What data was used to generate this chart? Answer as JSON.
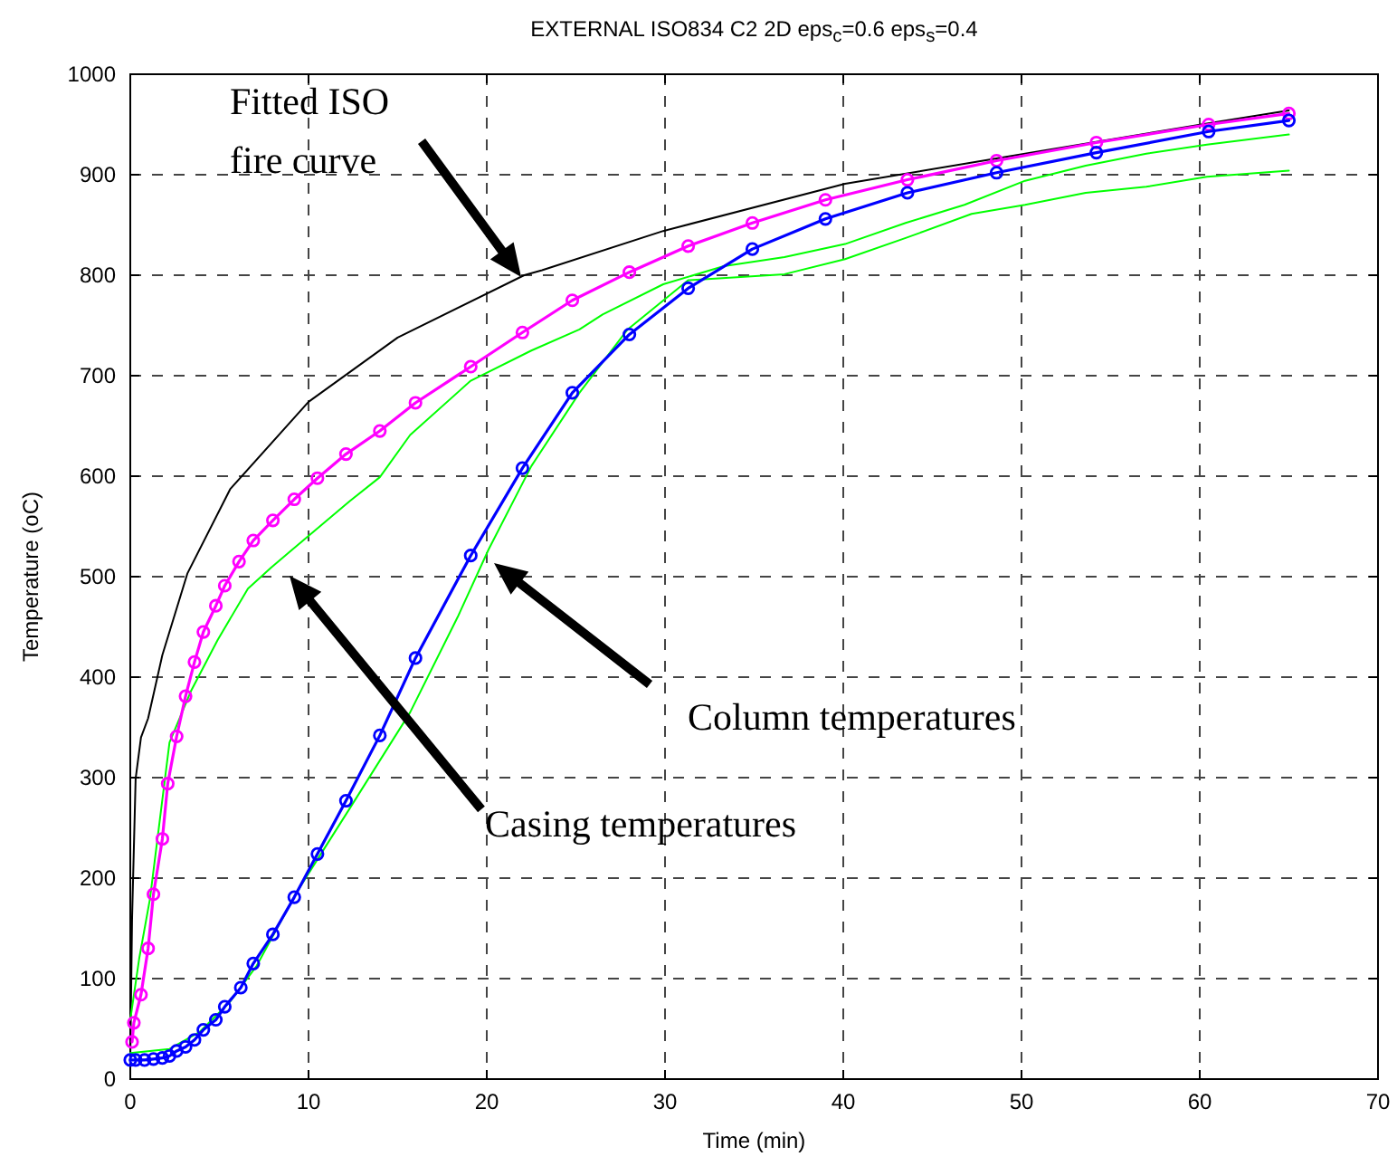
{
  "chart_data": {
    "type": "line",
    "title": "EXTERNAL ISO834 C2 2D eps$_{c}$=0.6 eps$_{s}$=0.4",
    "xlabel": "Time (min)",
    "ylabel": "Temperature (oC)",
    "xlim": [
      0,
      70
    ],
    "xticks": [
      0,
      10,
      20,
      30,
      40,
      50,
      60,
      70
    ],
    "ylim": [
      0,
      1000
    ],
    "yticks": [
      0,
      100,
      200,
      300,
      400,
      500,
      600,
      700,
      800,
      900,
      1000
    ],
    "grid": true,
    "marker": "none",
    "series": [
      {
        "color": "#000000",
        "x": [
          0,
          0.1,
          0.3,
          0.6,
          1.0,
          1.8,
          3.2,
          5.6,
          10,
          15,
          22.1,
          23.1,
          29.9,
          40.1,
          50.2,
          60.4,
          65
        ],
        "values": [
          20,
          160,
          299,
          340,
          359,
          422,
          503,
          587,
          674,
          738,
          800,
          805,
          844,
          891,
          921,
          951,
          964
        ]
      },
      {
        "color": "#00ff00",
        "x": [
          0,
          0.5,
          1.1,
          2.2,
          3.4,
          4.9,
          6.6,
          7.9,
          8.9,
          12.3,
          14.0,
          15.7,
          19.1,
          22.5,
          25.2,
          26.5,
          29.9,
          33.3,
          36.7,
          40.1,
          43.5,
          46.8,
          50.2,
          53.6,
          57.0,
          60.4,
          65
        ],
        "values": [
          59,
          120,
          179,
          335,
          386,
          437,
          488,
          509,
          524,
          575,
          599,
          641,
          695,
          725,
          746,
          761,
          791,
          809,
          818,
          831,
          852,
          870,
          894,
          909,
          921,
          930,
          940
        ]
      },
      {
        "color": "#00ff00",
        "x": [
          0,
          2.2,
          3.9,
          5.6,
          7.1,
          9.3,
          12.3,
          15.7,
          18.4,
          20.1,
          22.5,
          25.2,
          27.9,
          31.3,
          36.7,
          40.1,
          43.5,
          47.2,
          50.2,
          53.6,
          57.0,
          60.4,
          65
        ],
        "values": [
          26,
          30,
          47,
          77,
          113,
          185,
          269,
          365,
          461,
          527,
          610,
          683,
          746,
          795,
          801,
          816,
          837,
          861,
          870,
          882,
          888,
          898,
          904
        ]
      },
      {
        "color": "#ff00ff",
        "marker": "circle",
        "x": [
          0.1,
          0.2,
          0.6,
          1.0,
          1.3,
          1.8,
          2.1,
          2.6,
          3.1,
          3.6,
          4.1,
          4.8,
          5.3,
          6.1,
          6.9,
          8.0,
          9.2,
          10.5,
          12.1,
          14.0,
          16.0,
          19.1,
          22.0,
          24.8,
          28.0,
          31.3,
          34.9,
          39.0,
          43.6,
          48.6,
          54.2,
          60.5,
          65
        ],
        "values": [
          37,
          56,
          84,
          130,
          184,
          239,
          294,
          341,
          381,
          415,
          445,
          471,
          491,
          515,
          536,
          556,
          577,
          598,
          622,
          645,
          673,
          709,
          743,
          775,
          803,
          829,
          852,
          875,
          895,
          914,
          932,
          950,
          961
        ]
      },
      {
        "color": "#0000ff",
        "marker": "circle",
        "x": [
          0,
          0.3,
          0.8,
          1.3,
          1.8,
          2.2,
          2.6,
          3.1,
          3.6,
          4.1,
          4.8,
          5.3,
          6.2,
          6.9,
          8.0,
          9.2,
          10.5,
          12.1,
          14.0,
          16.0,
          19.1,
          22.0,
          24.8,
          28.0,
          31.3,
          34.9,
          39.0,
          43.6,
          48.6,
          54.2,
          60.5,
          65
        ],
        "values": [
          19,
          19,
          19,
          20,
          21,
          23,
          28,
          32,
          39,
          49,
          59,
          72,
          91,
          115,
          144,
          181,
          224,
          277,
          342,
          419,
          521,
          608,
          683,
          741,
          787,
          826,
          856,
          882,
          902,
          922,
          943,
          954
        ]
      }
    ],
    "annotations": [
      "Fitted ISO\nfire curve",
      "Column temperatures",
      "Casing temperatures"
    ]
  }
}
